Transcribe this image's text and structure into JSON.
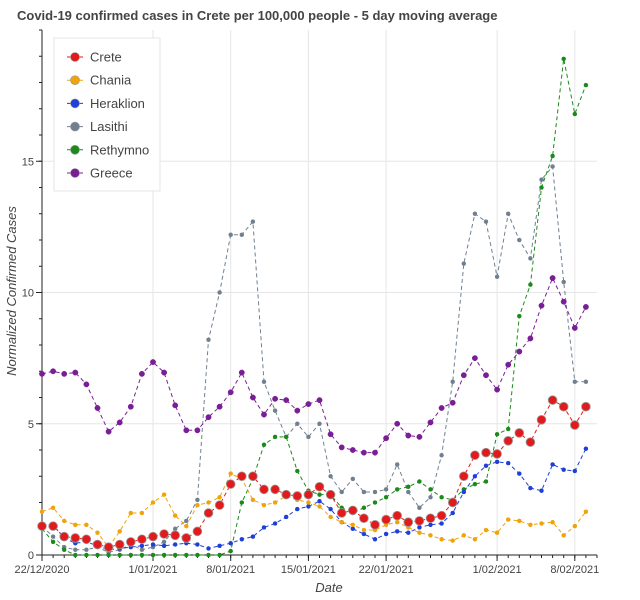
{
  "chart_data": {
    "type": "line",
    "title": "Covid-19 confirmed cases in Crete per 100,000 people - 5 day moving average",
    "xlabel": "Date",
    "ylabel": "Normalized Confirmed Cases",
    "xlim": [
      "2020-12-22",
      "2021-02-10"
    ],
    "ylim": [
      0,
      20
    ],
    "x_tick_labels": [
      "22/12/2020",
      "1/01/2021",
      "8/01/2021",
      "15/01/2021",
      "22/01/2021",
      "1/02/2021",
      "8/02/2021"
    ],
    "x_tick_dates": [
      "2020-12-22",
      "2021-01-01",
      "2021-01-08",
      "2021-01-15",
      "2021-01-22",
      "2021-02-01",
      "2021-02-08"
    ],
    "y_ticks": [
      0,
      5,
      10,
      15
    ],
    "grid": true,
    "legend_position": "top-left",
    "x": [
      "2020-12-22",
      "2020-12-23",
      "2020-12-24",
      "2020-12-25",
      "2020-12-26",
      "2020-12-27",
      "2020-12-28",
      "2020-12-29",
      "2020-12-30",
      "2020-12-31",
      "2021-01-01",
      "2021-01-02",
      "2021-01-03",
      "2021-01-04",
      "2021-01-05",
      "2021-01-06",
      "2021-01-07",
      "2021-01-08",
      "2021-01-09",
      "2021-01-10",
      "2021-01-11",
      "2021-01-12",
      "2021-01-13",
      "2021-01-14",
      "2021-01-15",
      "2021-01-16",
      "2021-01-17",
      "2021-01-18",
      "2021-01-19",
      "2021-01-20",
      "2021-01-21",
      "2021-01-22",
      "2021-01-23",
      "2021-01-24",
      "2021-01-25",
      "2021-01-26",
      "2021-01-27",
      "2021-01-28",
      "2021-01-29",
      "2021-01-30",
      "2021-01-31",
      "2021-02-01",
      "2021-02-02",
      "2021-02-03",
      "2021-02-04",
      "2021-02-05",
      "2021-02-06",
      "2021-02-07",
      "2021-02-08",
      "2021-02-09"
    ],
    "series": [
      {
        "name": "Crete",
        "color": "#e31a1c",
        "marker_size": 7,
        "values": [
          1.1,
          1.1,
          0.7,
          0.65,
          0.6,
          0.4,
          0.3,
          0.4,
          0.5,
          0.6,
          0.7,
          0.8,
          0.75,
          0.65,
          0.9,
          1.6,
          1.9,
          2.7,
          3.0,
          3.0,
          2.5,
          2.5,
          2.3,
          2.25,
          2.3,
          2.6,
          2.3,
          1.6,
          1.7,
          1.4,
          1.15,
          1.35,
          1.5,
          1.25,
          1.3,
          1.4,
          1.5,
          2.0,
          3.0,
          3.8,
          3.9,
          3.85,
          4.35,
          4.65,
          4.3,
          5.15,
          5.9,
          5.65,
          4.95,
          5.65
        ]
      },
      {
        "name": "Chania",
        "color": "#f0a30a",
        "marker_size": 3,
        "values": [
          1.65,
          1.8,
          1.3,
          1.15,
          1.15,
          0.85,
          0.3,
          0.9,
          1.6,
          1.6,
          2.0,
          2.3,
          1.5,
          1.1,
          1.9,
          2.0,
          2.2,
          3.1,
          2.9,
          2.1,
          1.9,
          2.0,
          2.25,
          2.1,
          2.0,
          1.85,
          1.45,
          1.25,
          1.15,
          0.95,
          0.95,
          1.15,
          1.25,
          1.05,
          0.85,
          0.75,
          0.6,
          0.55,
          0.75,
          0.6,
          0.95,
          0.85,
          1.35,
          1.3,
          1.15,
          1.2,
          1.25,
          0.75,
          1.1,
          1.65
        ]
      },
      {
        "name": "Heraklion",
        "color": "#1f3fd6",
        "marker_size": 3,
        "values": [
          1.05,
          1.15,
          0.65,
          0.45,
          0.5,
          0.35,
          0.2,
          0.25,
          0.3,
          0.35,
          0.4,
          0.35,
          0.4,
          0.45,
          0.4,
          0.25,
          0.35,
          0.45,
          0.6,
          0.7,
          1.05,
          1.2,
          1.45,
          1.75,
          1.85,
          2.05,
          1.75,
          1.25,
          1.0,
          0.8,
          0.6,
          0.8,
          0.9,
          0.85,
          1.05,
          1.15,
          1.2,
          1.6,
          2.4,
          3.0,
          3.4,
          3.55,
          3.5,
          3.1,
          2.55,
          2.45,
          3.45,
          3.25,
          3.2,
          4.05
        ]
      },
      {
        "name": "Lasithi",
        "color": "#708090",
        "marker_size": 3,
        "values": [
          1.1,
          0.7,
          0.3,
          0.2,
          0.2,
          0.3,
          0.1,
          0.2,
          0.4,
          0.2,
          0.3,
          0.5,
          1.0,
          1.3,
          2.1,
          8.2,
          10.0,
          12.2,
          12.2,
          12.7,
          6.6,
          5.5,
          4.5,
          5.0,
          4.5,
          5.0,
          3.0,
          2.4,
          2.9,
          2.4,
          2.4,
          2.5,
          3.45,
          2.4,
          1.8,
          2.2,
          3.8,
          6.6,
          11.1,
          13.0,
          12.7,
          10.6,
          13.0,
          12.0,
          11.3,
          14.3,
          14.8,
          10.4,
          6.6,
          6.6
        ]
      },
      {
        "name": "Rethymno",
        "color": "#1a8a1a",
        "marker_size": 3,
        "values": [
          1.0,
          0.5,
          0.2,
          0.0,
          0.0,
          0.0,
          0.0,
          0.0,
          0.0,
          0.0,
          0.0,
          0.0,
          0.0,
          0.0,
          0.0,
          0.0,
          0.0,
          0.15,
          2.0,
          2.9,
          4.2,
          4.5,
          4.5,
          3.2,
          2.45,
          2.3,
          2.3,
          1.8,
          1.6,
          1.8,
          2.0,
          2.2,
          2.5,
          2.6,
          2.8,
          2.5,
          2.2,
          2.1,
          2.5,
          2.7,
          2.8,
          4.6,
          4.8,
          9.1,
          10.3,
          14.0,
          15.2,
          18.9,
          16.8,
          17.9
        ]
      },
      {
        "name": "Greece",
        "color": "#7a1e96",
        "marker_size": 4,
        "values": [
          6.9,
          7.0,
          6.9,
          6.95,
          6.5,
          5.6,
          4.7,
          5.05,
          5.65,
          6.9,
          7.35,
          6.95,
          5.7,
          4.75,
          4.75,
          5.25,
          5.65,
          6.2,
          6.95,
          6.0,
          5.35,
          5.95,
          5.9,
          5.5,
          5.75,
          5.9,
          4.6,
          4.1,
          4.0,
          3.9,
          3.9,
          4.45,
          5.0,
          4.55,
          4.5,
          5.05,
          5.6,
          5.8,
          6.85,
          7.5,
          6.85,
          6.3,
          7.25,
          7.75,
          8.25,
          9.5,
          10.55,
          9.65,
          8.65,
          9.45
        ]
      }
    ]
  }
}
